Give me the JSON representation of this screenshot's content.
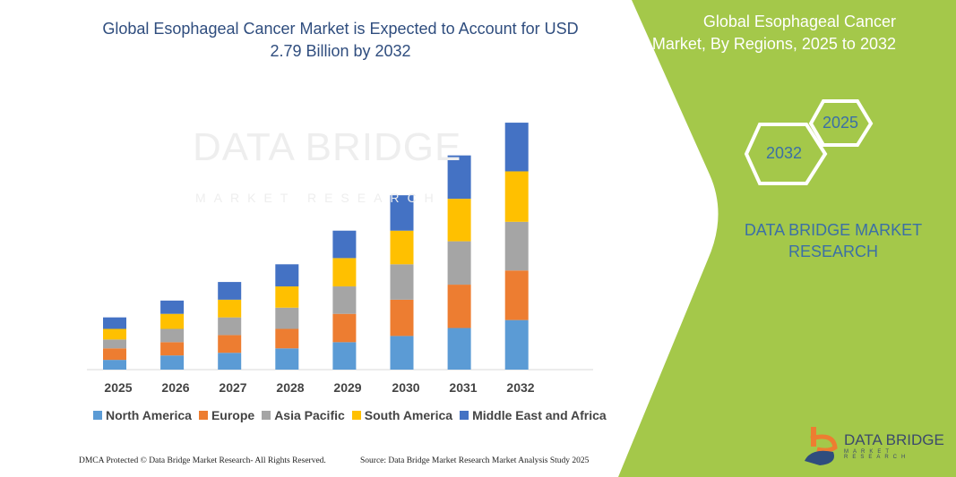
{
  "header": {
    "title": "Global Esophageal Cancer Market is Expected to Account for USD 2.79 Billion by 2032"
  },
  "side_panel": {
    "title": "Global Esophageal Cancer Market, By Regions, 2025 to 2032",
    "hex_start": "2025",
    "hex_end": "2032",
    "brand": "DATA BRIDGE MARKET RESEARCH",
    "panel_color": "#A4C84A"
  },
  "watermark": {
    "text": "DATA BRIDGE",
    "subtext": "MARKET RESEARCH"
  },
  "logo": {
    "text": "DATA BRIDGE",
    "subtext": "MARKET RESEARCH"
  },
  "footer": {
    "left": "DMCA Protected © Data Bridge Market Research-  All Rights Reserved.",
    "right": "Source: Data Bridge Market Research  Market Analysis Study 2025"
  },
  "chart_data": {
    "type": "bar",
    "stacked": true,
    "title": "Global Esophageal Cancer Market is Expected to Account for USD 2.79 Billion by 2032",
    "xlabel": "",
    "ylabel": "",
    "y_axis_shown": false,
    "grid": false,
    "legend_position": "bottom",
    "categories": [
      "2025",
      "2026",
      "2027",
      "2028",
      "2029",
      "2030",
      "2031",
      "2032"
    ],
    "series": [
      {
        "name": "North America",
        "color": "#5B9BD5",
        "values": [
          0.11,
          0.16,
          0.19,
          0.24,
          0.31,
          0.38,
          0.47,
          0.56
        ]
      },
      {
        "name": "Europe",
        "color": "#ED7D31",
        "values": [
          0.13,
          0.15,
          0.2,
          0.22,
          0.32,
          0.41,
          0.49,
          0.56
        ]
      },
      {
        "name": "Asia Pacific",
        "color": "#A5A5A5",
        "values": [
          0.1,
          0.15,
          0.2,
          0.24,
          0.31,
          0.4,
          0.49,
          0.55
        ]
      },
      {
        "name": "South America",
        "color": "#FFC000",
        "values": [
          0.12,
          0.17,
          0.2,
          0.24,
          0.32,
          0.38,
          0.48,
          0.57
        ]
      },
      {
        "name": "Middle East and Africa",
        "color": "#4472C4",
        "values": [
          0.13,
          0.15,
          0.2,
          0.25,
          0.31,
          0.4,
          0.49,
          0.55
        ]
      }
    ]
  }
}
